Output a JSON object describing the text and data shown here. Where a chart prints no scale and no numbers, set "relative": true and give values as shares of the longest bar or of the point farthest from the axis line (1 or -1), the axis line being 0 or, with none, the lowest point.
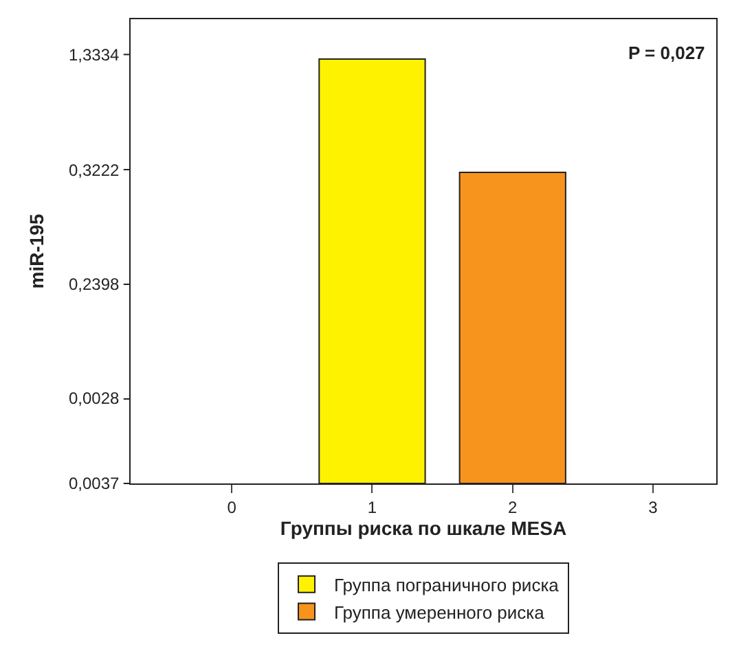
{
  "chart_data": {
    "type": "bar",
    "xlabel": "Группы риска по шкале MESA",
    "ylabel": "miR-195",
    "x": [
      1,
      2
    ],
    "relative": true,
    "series": [
      {
        "name": "Группа пограничного риска",
        "color": "#fff200",
        "values": [
          1,
          null
        ]
      },
      {
        "name": "Группа умеренного риска",
        "color": "#f7941d",
        "values": [
          null,
          0.733
        ]
      }
    ],
    "xlim": [
      -0.72,
      3.45
    ],
    "xticks": [
      0,
      1,
      2,
      3
    ],
    "annotations": [
      "0,0037",
      "0,0028",
      "0,2398",
      "0,3222",
      "1,3334",
      "P = 0,027"
    ],
    "legend": "bottom"
  }
}
